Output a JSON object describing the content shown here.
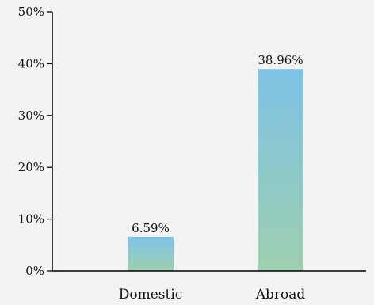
{
  "chart_data": {
    "type": "bar",
    "title": "",
    "xlabel": "",
    "ylabel": "",
    "categories": [
      "Domestic",
      "Abroad"
    ],
    "values": [
      6.59,
      38.96
    ],
    "value_labels": [
      "6.59%",
      "38.96%"
    ],
    "ylim": [
      0,
      50
    ],
    "yticks": [
      0,
      10,
      20,
      30,
      40,
      50
    ],
    "ytick_labels": [
      "0%",
      "10%",
      "20%",
      "30%",
      "40%",
      "50%"
    ],
    "grid": false,
    "legend": "none",
    "colors": {
      "bar_top": "#7ec3e6",
      "bar_bottom": "#9ecfb0",
      "axis": "#000000",
      "text": "#111111",
      "background": "#f3f3f3"
    }
  }
}
